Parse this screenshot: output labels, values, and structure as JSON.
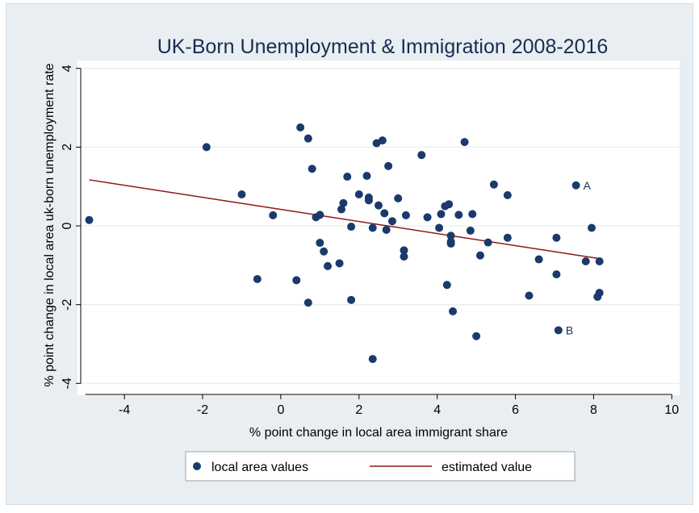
{
  "chart_data": {
    "type": "scatter",
    "title": "UK-Born Unemployment & Immigration 2008-2016",
    "xlabel": "% point change in local area immigrant share",
    "ylabel": "% point change in local area uk-born unemployment rate",
    "xlim": [
      -5.2,
      10.2
    ],
    "ylim": [
      -4.3,
      4.2
    ],
    "xticks": [
      -4,
      -2,
      0,
      2,
      4,
      6,
      8,
      10
    ],
    "yticks": [
      -4,
      -2,
      0,
      2,
      4
    ],
    "xtick_labels": [
      "-4",
      "-2",
      "0",
      "2",
      "4",
      "6",
      "8",
      "10"
    ],
    "ytick_labels": [
      "-4",
      "-2",
      "0",
      "2",
      "4"
    ],
    "grid": "horizontal",
    "legend_position": "bottom",
    "colors": {
      "points": "#1a3a6b",
      "line": "#8b1a1a",
      "panel": "#ffffff",
      "background": "#e8eef2"
    },
    "series": [
      {
        "name": "local area values",
        "kind": "scatter",
        "x": [
          -4.9,
          -1.9,
          -1.0,
          -0.6,
          -0.2,
          0.4,
          0.5,
          0.7,
          0.7,
          0.8,
          0.9,
          1.0,
          1.0,
          1.1,
          1.2,
          1.5,
          1.55,
          1.6,
          1.7,
          1.8,
          1.8,
          2.0,
          2.2,
          2.25,
          2.25,
          2.35,
          2.35,
          2.45,
          2.5,
          2.6,
          2.65,
          2.7,
          2.75,
          2.85,
          3.0,
          3.15,
          3.15,
          3.2,
          3.6,
          3.75,
          4.05,
          4.1,
          4.2,
          4.25,
          4.3,
          4.35,
          4.35,
          4.35,
          4.4,
          4.55,
          4.7,
          4.85,
          4.9,
          5.0,
          5.1,
          5.3,
          5.45,
          5.8,
          5.8,
          6.35,
          6.6,
          7.05,
          7.05,
          7.1,
          7.55,
          7.8,
          7.95,
          8.1,
          8.15,
          8.15
        ],
        "y": [
          0.15,
          2.0,
          0.8,
          -1.35,
          0.27,
          -1.38,
          2.5,
          2.22,
          -1.95,
          1.45,
          0.22,
          0.28,
          -0.43,
          -0.65,
          -1.02,
          -0.95,
          0.42,
          0.58,
          1.25,
          -0.02,
          -1.88,
          0.8,
          1.27,
          0.72,
          0.65,
          -0.05,
          -3.38,
          2.1,
          0.52,
          2.17,
          0.32,
          -0.1,
          1.52,
          0.12,
          0.7,
          -0.62,
          -0.78,
          0.27,
          1.8,
          0.22,
          -0.05,
          0.3,
          0.5,
          -1.5,
          0.55,
          -0.25,
          -0.4,
          -0.45,
          -2.17,
          0.28,
          2.13,
          -0.12,
          0.3,
          -2.8,
          -0.75,
          -0.42,
          1.05,
          0.78,
          -0.3,
          -1.77,
          -0.85,
          -0.3,
          -1.23,
          -2.65,
          1.03,
          -0.9,
          -0.05,
          -1.8,
          -0.9,
          -1.7
        ]
      },
      {
        "name": "estimated value",
        "kind": "line",
        "x": [
          -4.9,
          8.15
        ],
        "y": [
          1.17,
          -0.83
        ]
      }
    ],
    "annotations": [
      {
        "text": "A",
        "x": 7.55,
        "y": 1.03
      },
      {
        "text": "B",
        "x": 7.1,
        "y": -2.65
      }
    ]
  }
}
